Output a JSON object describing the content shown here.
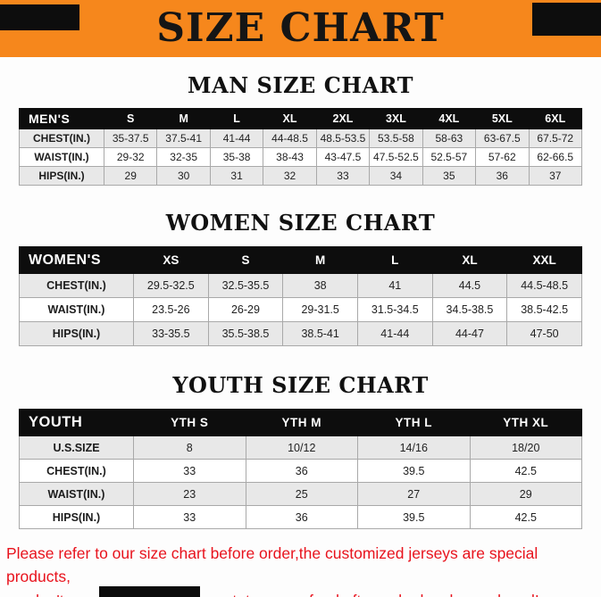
{
  "banner": {
    "title": "SIZE CHART",
    "background_color": "#f6871c",
    "corner_block_color": "#0d0d0d"
  },
  "colors": {
    "table_header_bg": "#0d0d0d",
    "table_header_text": "#ffffff",
    "zebra_row": "#e8e8e8",
    "footer_text": "#e8131d"
  },
  "chart_data": [
    {
      "type": "table",
      "title": "MAN SIZE CHART",
      "columns": [
        "MEN'S",
        "S",
        "M",
        "L",
        "XL",
        "2XL",
        "3XL",
        "4XL",
        "5XL",
        "6XL"
      ],
      "rows": [
        [
          "CHEST(IN.)",
          "35-37.5",
          "37.5-41",
          "41-44",
          "44-48.5",
          "48.5-53.5",
          "53.5-58",
          "58-63",
          "63-67.5",
          "67.5-72"
        ],
        [
          "WAIST(IN.)",
          "29-32",
          "32-35",
          "35-38",
          "38-43",
          "43-47.5",
          "47.5-52.5",
          "52.5-57",
          "57-62",
          "62-66.5"
        ],
        [
          "HIPS(IN.)",
          "29",
          "30",
          "31",
          "32",
          "33",
          "34",
          "35",
          "36",
          "37"
        ]
      ]
    },
    {
      "type": "table",
      "title": "WOMEN SIZE CHART",
      "columns": [
        "WOMEN'S",
        "XS",
        "S",
        "M",
        "L",
        "XL",
        "XXL"
      ],
      "rows": [
        [
          "CHEST(IN.)",
          "29.5-32.5",
          "32.5-35.5",
          "38",
          "41",
          "44.5",
          "44.5-48.5"
        ],
        [
          "WAIST(IN.)",
          "23.5-26",
          "26-29",
          "29-31.5",
          "31.5-34.5",
          "34.5-38.5",
          "38.5-42.5"
        ],
        [
          "HIPS(IN.)",
          "33-35.5",
          "35.5-38.5",
          "38.5-41",
          "41-44",
          "44-47",
          "47-50"
        ]
      ]
    },
    {
      "type": "table",
      "title": "YOUTH SIZE CHART",
      "columns": [
        "YOUTH",
        "YTH S",
        "YTH M",
        "YTH L",
        "YTH XL"
      ],
      "rows": [
        [
          "U.S.SIZE",
          "8",
          "10/12",
          "14/16",
          "18/20"
        ],
        [
          "CHEST(IN.)",
          "33",
          "36",
          "39.5",
          "42.5"
        ],
        [
          "WAIST(IN.)",
          "23",
          "25",
          "27",
          "29"
        ],
        [
          "HIPS(IN.)",
          "33",
          "36",
          "39.5",
          "42.5"
        ]
      ]
    }
  ],
  "footer": {
    "line1": "Please refer to our size chart before order,the customized jerseys are special products,",
    "line2": "we don't accept cancel, change, teturn or refund after order has been placed!"
  }
}
